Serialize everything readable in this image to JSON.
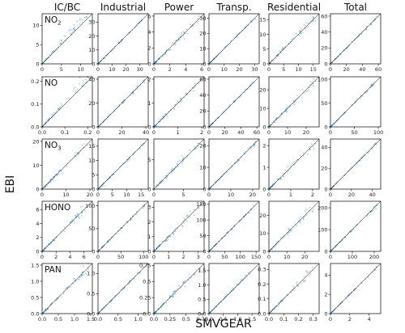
{
  "chart_data": {
    "type": "scatter",
    "xlabel": "SMVGEAR",
    "ylabel": "EBI",
    "columns": [
      "IC/BC",
      "Industrial",
      "Power",
      "Transp.",
      "Residential",
      "Total"
    ],
    "rows": [
      {
        "species": "NO",
        "sub": "2",
        "panels": [
          {
            "xlim": [
              0,
              13
            ],
            "ylim": [
              0,
              13
            ],
            "xticks": [
              0,
              5,
              10
            ],
            "yticks": [
              0,
              5,
              10
            ]
          },
          {
            "xlim": [
              0,
              36
            ],
            "ylim": [
              0,
              36
            ],
            "xticks": [
              0,
              10,
              20,
              30
            ],
            "yticks": [
              0,
              10,
              20,
              30
            ]
          },
          {
            "xlim": [
              0,
              6.3
            ],
            "ylim": [
              0,
              6.3
            ],
            "xticks": [
              0,
              2,
              4,
              6
            ],
            "yticks": [
              0,
              2,
              4,
              6
            ]
          },
          {
            "xlim": [
              0,
              33
            ],
            "ylim": [
              0,
              33
            ],
            "xticks": [
              0,
              10,
              20,
              30
            ],
            "yticks": [
              0,
              10,
              20,
              30
            ]
          },
          {
            "xlim": [
              0,
              17
            ],
            "ylim": [
              0,
              17
            ],
            "xticks": [
              0,
              5,
              10,
              15
            ],
            "yticks": [
              0,
              5,
              10,
              15
            ]
          },
          {
            "xlim": [
              0,
              63
            ],
            "ylim": [
              0,
              63
            ],
            "xticks": [
              0,
              20,
              40,
              60
            ],
            "yticks": [
              0,
              20,
              40,
              60
            ]
          }
        ]
      },
      {
        "species": "NO",
        "sub": "",
        "panels": [
          {
            "xlim": [
              0,
              0.22
            ],
            "ylim": [
              0,
              0.22
            ],
            "xticks": [
              0.0,
              0.1,
              0.2
            ],
            "yticks": [
              0.0,
              0.1,
              0.2
            ]
          },
          {
            "xlim": [
              0,
              42
            ],
            "ylim": [
              0,
              42
            ],
            "xticks": [
              0,
              20,
              40
            ],
            "yticks": [
              0,
              20,
              40
            ]
          },
          {
            "xlim": [
              0,
              2.1
            ],
            "ylim": [
              0,
              2.1
            ],
            "xticks": [
              0,
              1,
              2
            ],
            "yticks": [
              0,
              1,
              2
            ]
          },
          {
            "xlim": [
              0,
              63
            ],
            "ylim": [
              0,
              63
            ],
            "xticks": [
              0,
              20,
              40,
              60
            ],
            "yticks": [
              0,
              20,
              40,
              60
            ]
          },
          {
            "xlim": [
              0,
              27
            ],
            "ylim": [
              0,
              27
            ],
            "xticks": [
              0,
              10,
              20
            ],
            "yticks": [
              0,
              10,
              20
            ]
          },
          {
            "xlim": [
              0,
              105
            ],
            "ylim": [
              0,
              105
            ],
            "xticks": [
              0,
              50,
              100
            ],
            "yticks": [
              0,
              50,
              100
            ]
          }
        ]
      },
      {
        "species": "NO",
        "sub": "3",
        "panels": [
          {
            "xlim": [
              0,
              21
            ],
            "ylim": [
              0,
              21
            ],
            "xticks": [
              0,
              10,
              20
            ],
            "yticks": [
              0,
              10,
              20
            ]
          },
          {
            "xlim": [
              0,
              17.5
            ],
            "ylim": [
              0,
              17.5
            ],
            "xticks": [
              0,
              5,
              10,
              15
            ],
            "yticks": [
              0,
              5,
              10,
              15
            ]
          },
          {
            "xlim": [
              0,
              8.5
            ],
            "ylim": [
              0,
              8.5
            ],
            "xticks": [
              0,
              5
            ],
            "yticks": [
              0,
              5
            ]
          },
          {
            "xlim": [
              0,
              23
            ],
            "ylim": [
              0,
              23
            ],
            "xticks": [
              0,
              10,
              20
            ],
            "yticks": [
              0,
              10,
              20
            ]
          },
          {
            "xlim": [
              0,
              2.3
            ],
            "ylim": [
              0,
              2.3
            ],
            "xticks": [
              0,
              1,
              2
            ],
            "yticks": [
              0,
              1,
              2
            ]
          },
          {
            "xlim": [
              0,
              48
            ],
            "ylim": [
              0,
              48
            ],
            "xticks": [
              0,
              20,
              40
            ],
            "yticks": [
              0,
              20,
              40
            ]
          }
        ]
      },
      {
        "species": "HONO",
        "sub": "",
        "panels": [
          {
            "xlim": [
              0,
              7.2
            ],
            "ylim": [
              0,
              7.2
            ],
            "xticks": [
              0,
              2,
              4,
              6
            ],
            "yticks": [
              0,
              2,
              4,
              6
            ]
          },
          {
            "xlim": [
              0,
              110
            ],
            "ylim": [
              0,
              110
            ],
            "xticks": [
              0,
              50,
              100
            ],
            "yticks": [
              0,
              50,
              100
            ]
          },
          {
            "xlim": [
              0,
              3.4
            ],
            "ylim": [
              0,
              3.4
            ],
            "xticks": [
              0,
              1,
              2,
              3
            ],
            "yticks": [
              0,
              1,
              2,
              3
            ]
          },
          {
            "xlim": [
              0,
              160
            ],
            "ylim": [
              0,
              160
            ],
            "xticks": [
              0,
              50,
              100,
              150
            ],
            "yticks": [
              0,
              50,
              100,
              150
            ]
          },
          {
            "xlim": [
              0,
              28
            ],
            "ylim": [
              0,
              28
            ],
            "xticks": [
              0,
              10,
              20
            ],
            "yticks": [
              0,
              10,
              20
            ]
          },
          {
            "xlim": [
              0,
              230
            ],
            "ylim": [
              0,
              230
            ],
            "xticks": [
              0,
              100,
              200
            ],
            "yticks": [
              0,
              100,
              200
            ]
          }
        ]
      },
      {
        "species": "PAN",
        "sub": "",
        "panels": [
          {
            "xlim": [
              0,
              1.55
            ],
            "ylim": [
              0,
              1.55
            ],
            "xticks": [
              0.0,
              0.5,
              1.0,
              1.5
            ],
            "yticks": [
              0.0,
              0.5,
              1.0,
              1.5
            ]
          },
          {
            "xlim": [
              0,
              1.25
            ],
            "ylim": [
              0,
              1.25
            ],
            "xticks": [
              0.0,
              0.5,
              1.0
            ],
            "yticks": [
              0.0,
              0.5,
              1.0
            ]
          },
          {
            "xlim": [
              0,
              0.78
            ],
            "ylim": [
              0,
              0.78
            ],
            "xticks": [
              0.0,
              0.25,
              0.5,
              0.75
            ],
            "yticks": [
              0.0,
              0.25,
              0.5,
              0.75
            ]
          },
          {
            "xlim": [
              0,
              1.75
            ],
            "ylim": [
              0,
              1.75
            ],
            "xticks": [
              0.0,
              0.5,
              1.0,
              1.5
            ],
            "yticks": [
              0.0,
              0.5,
              1.0,
              1.5
            ]
          },
          {
            "xlim": [
              0,
              0.34
            ],
            "ylim": [
              0,
              0.34
            ],
            "xticks": [
              0.0,
              0.1,
              0.2,
              0.3
            ],
            "yticks": [
              0.0,
              0.1,
              0.2,
              0.3
            ]
          },
          {
            "xlim": [
              0,
              5.2
            ],
            "ylim": [
              0,
              5.2
            ],
            "xticks": [
              0,
              2,
              4
            ],
            "yticks": [
              0,
              2,
              4
            ]
          }
        ]
      }
    ],
    "grid": false,
    "one_to_one_line": true,
    "colors": {
      "points": "#4a8fc4",
      "line": "#000000"
    }
  }
}
